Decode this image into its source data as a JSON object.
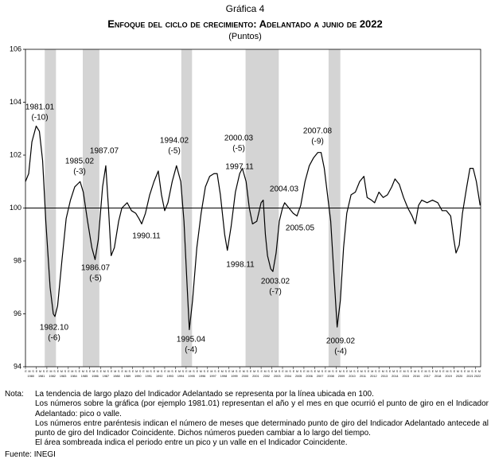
{
  "chart_data": {
    "type": "line",
    "kicker": "Gráfica 4",
    "title": "Enfoque del ciclo de crecimiento: Adelantado a junio de 2022",
    "subtitle": "(Puntos)",
    "color": "#000000",
    "shade_color": "#d4d4d4",
    "baseline": 100,
    "ylim": [
      94,
      106
    ],
    "yticks": [
      94,
      96,
      98,
      100,
      102,
      104,
      106
    ],
    "xlim": [
      1980,
      2022.5
    ],
    "xticks": [
      1980,
      1981,
      1982,
      1983,
      1984,
      1985,
      1986,
      1987,
      1988,
      1989,
      1990,
      1991,
      1992,
      1993,
      1994,
      1995,
      1996,
      1997,
      1998,
      1999,
      2000,
      2001,
      2002,
      2003,
      2004,
      2005,
      2006,
      2007,
      2008,
      2009,
      2010,
      2011,
      2012,
      2013,
      2014,
      2015,
      2016,
      2017,
      2018,
      2019,
      2020,
      2021,
      2022
    ],
    "month_labels": [
      "E",
      "M",
      "S"
    ],
    "shaded_periods": [
      [
        1981.8,
        1982.85
      ],
      [
        1985.35,
        1986.9
      ],
      [
        1994.55,
        1995.55
      ],
      [
        2000.55,
        2003.65
      ],
      [
        2008.3,
        2009.4
      ]
    ],
    "x": [
      1980.0,
      1980.3,
      1980.6,
      1981.0,
      1981.3,
      1981.6,
      1981.9,
      1982.3,
      1982.6,
      1982.75,
      1983.0,
      1983.4,
      1983.8,
      1984.2,
      1984.6,
      1985.1,
      1985.4,
      1985.8,
      1986.2,
      1986.5,
      1986.8,
      1987.2,
      1987.5,
      1987.75,
      1988.0,
      1988.3,
      1988.7,
      1989.0,
      1989.5,
      1989.9,
      1990.3,
      1990.6,
      1990.85,
      1991.2,
      1991.6,
      1992.0,
      1992.4,
      1992.7,
      1993.0,
      1993.3,
      1993.7,
      1994.1,
      1994.5,
      1994.8,
      1995.1,
      1995.3,
      1995.6,
      1996.0,
      1996.4,
      1996.8,
      1997.2,
      1997.6,
      1997.9,
      1998.2,
      1998.6,
      1998.85,
      1999.2,
      1999.6,
      2000.0,
      2000.25,
      2000.6,
      2000.9,
      2001.2,
      2001.6,
      2002.0,
      2002.2,
      2002.4,
      2002.6,
      2002.9,
      2003.1,
      2003.4,
      2003.7,
      2004.0,
      2004.2,
      2004.6,
      2005.0,
      2005.35,
      2005.7,
      2006.1,
      2006.5,
      2006.9,
      2007.3,
      2007.6,
      2007.9,
      2008.2,
      2008.5,
      2008.8,
      2009.1,
      2009.4,
      2009.7,
      2010.0,
      2010.4,
      2010.8,
      2011.2,
      2011.6,
      2011.9,
      2012.3,
      2012.6,
      2013.0,
      2013.4,
      2013.8,
      2014.2,
      2014.5,
      2014.9,
      2015.3,
      2015.7,
      2016.1,
      2016.4,
      2016.7,
      2017.0,
      2017.5,
      2018.0,
      2018.5,
      2018.9,
      2019.3,
      2019.7,
      2020.0,
      2020.2,
      2020.5,
      2020.8,
      2021.2,
      2021.5,
      2021.8,
      2022.1,
      2022.45
    ],
    "values": [
      101.0,
      101.3,
      102.5,
      103.1,
      102.9,
      101.8,
      99.5,
      97.0,
      96.0,
      95.9,
      96.3,
      98.0,
      99.6,
      100.3,
      100.8,
      101.0,
      100.6,
      99.5,
      98.5,
      98.05,
      98.8,
      100.8,
      101.6,
      100.0,
      98.2,
      98.5,
      99.5,
      100.0,
      100.2,
      99.9,
      99.8,
      99.6,
      99.4,
      99.8,
      100.5,
      101.0,
      101.4,
      100.5,
      99.9,
      100.2,
      101.0,
      101.6,
      101.0,
      99.5,
      97.0,
      95.4,
      96.5,
      98.5,
      99.8,
      100.8,
      101.2,
      101.3,
      101.3,
      100.5,
      99.0,
      98.4,
      99.3,
      100.6,
      101.3,
      101.5,
      101.0,
      100.0,
      99.4,
      99.5,
      100.2,
      100.3,
      99.0,
      98.2,
      97.7,
      97.6,
      98.3,
      99.5,
      100.0,
      100.2,
      100.0,
      99.8,
      99.7,
      100.1,
      101.0,
      101.6,
      101.9,
      102.1,
      102.1,
      101.5,
      100.5,
      99.5,
      97.5,
      95.5,
      96.5,
      98.5,
      99.8,
      100.5,
      100.6,
      101.0,
      101.2,
      100.4,
      100.3,
      100.2,
      100.6,
      100.4,
      100.5,
      100.8,
      101.1,
      100.9,
      100.4,
      100.0,
      99.7,
      99.4,
      100.1,
      100.3,
      100.2,
      100.3,
      100.2,
      99.9,
      99.9,
      99.7,
      98.8,
      98.3,
      98.6,
      99.8,
      100.8,
      101.5,
      101.5,
      101.0,
      100.1
    ],
    "annotations": [
      {
        "label": "1981.01",
        "lag": "(-10)"
      },
      {
        "label": "1982.10",
        "lag": "(-6)"
      },
      {
        "label": "1985.02",
        "lag": "(-3)"
      },
      {
        "label": "1986.07",
        "lag": "(-5)"
      },
      {
        "label": "1987.07"
      },
      {
        "label": "1990.11"
      },
      {
        "label": "1994.02",
        "lag": "(-5)"
      },
      {
        "label": "1995.04",
        "lag": "(-4)"
      },
      {
        "label": "1997.11"
      },
      {
        "label": "1998.11"
      },
      {
        "label": "2000.03",
        "lag": "(-5)"
      },
      {
        "label": "2003.02",
        "lag": "(-7)"
      },
      {
        "label": "2004.03"
      },
      {
        "label": "2005.05"
      },
      {
        "label": "2007.08",
        "lag": "(-9)"
      },
      {
        "label": "2009.02",
        "lag": "(-4)"
      }
    ]
  },
  "notes": {
    "heading": "Nota:",
    "lines": [
      "La tendencia de largo plazo del Indicador Adelantado se representa por la línea ubicada en 100.",
      "Los números sobre la gráfica (por ejemplo 1981.01) representan el año y el mes en que ocurrió el punto de giro en el Indicador Adelantado: pico o valle.",
      "Los números entre paréntesis indican el número de meses que determinado punto de giro del Indicador Adelantado antecede al punto de giro del Indicador Coincidente. Dichos números pueden cambiar a lo largo del tiempo.",
      "El área sombreada indica el periodo entre un pico y un valle en el Indicador Coincidente."
    ],
    "source": "Fuente: INEGI"
  }
}
